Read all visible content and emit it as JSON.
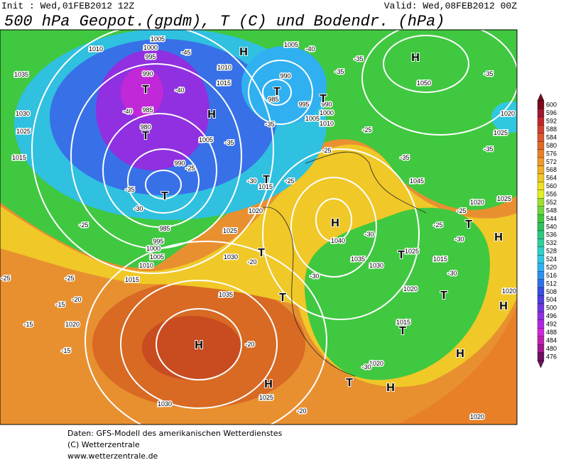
{
  "header": {
    "init": "Init : Wed,01FEB2012 12Z",
    "valid": "Valid: Wed,08FEB2012 00Z",
    "title": "500 hPa Geopot.(gpdm), T (C) und Bodendr. (hPa)"
  },
  "scale": {
    "values": [
      600,
      596,
      592,
      588,
      584,
      580,
      576,
      572,
      568,
      564,
      560,
      556,
      552,
      548,
      544,
      540,
      536,
      532,
      528,
      524,
      520,
      516,
      512,
      508,
      504,
      500,
      496,
      492,
      488,
      484,
      480,
      476
    ],
    "colors": [
      "#7a0a1e",
      "#a01830",
      "#c02828",
      "#d04030",
      "#d85830",
      "#e06a28",
      "#e88028",
      "#f09830",
      "#f0b028",
      "#f0c828",
      "#f0e020",
      "#e0f020",
      "#a0e030",
      "#70d840",
      "#40c840",
      "#30c060",
      "#30c880",
      "#30d0a0",
      "#30d0c8",
      "#30c8e0",
      "#30b0f0",
      "#3090f0",
      "#3070e8",
      "#3850e0",
      "#5040e0",
      "#7038e0",
      "#9030e0",
      "#b028e0",
      "#d028d8",
      "#c020b0",
      "#a01890",
      "#701060"
    ]
  },
  "map": {
    "labels": [
      "1035",
      "1030",
      "1025",
      "1015",
      "1010",
      "1005",
      "1000",
      "995",
      "-45",
      "990",
      "985",
      "980",
      "-40",
      "-40",
      "-35",
      "-30",
      "-25",
      "-25",
      "-20",
      "-15",
      "-15",
      "-15",
      "1020",
      "1030",
      "1035",
      "-20",
      "-20",
      "1030",
      "1025",
      "1020",
      "1015",
      "1010",
      "1005",
      "1000",
      "995",
      "985",
      "1015",
      "-25",
      "-30",
      "990",
      "-25",
      "1005",
      "-35",
      "1015",
      "1010",
      "-35",
      "985",
      "990",
      "1005",
      "-40",
      "-35",
      "-35",
      "995",
      "990",
      "1000",
      "1005",
      "1010",
      "-25",
      "-25",
      "1050",
      "-35",
      "-35",
      "1045",
      "-35",
      "1025",
      "1020",
      "1020",
      "1025",
      "-25",
      "-25",
      "-30",
      "-30",
      "1040",
      "1035",
      "1030",
      "-30",
      "1025",
      "1015",
      "1020",
      "-30",
      "1015",
      "1020",
      "-30",
      "1025",
      "-20",
      "1020",
      "1020",
      "-25"
    ],
    "centers": [
      "H",
      "H",
      "T",
      "H",
      "T",
      "T",
      "T",
      "T",
      "T",
      "T",
      "T",
      "H",
      "T",
      "T",
      "H",
      "T",
      "T",
      "H",
      "H",
      "H",
      "T",
      "H",
      "H"
    ]
  },
  "footer": {
    "lines": [
      "Daten: GFS-Modell des amerikanischen Wetterdienstes",
      "(C) Wetterzentrale",
      "www.wetterzentrale.de"
    ]
  }
}
